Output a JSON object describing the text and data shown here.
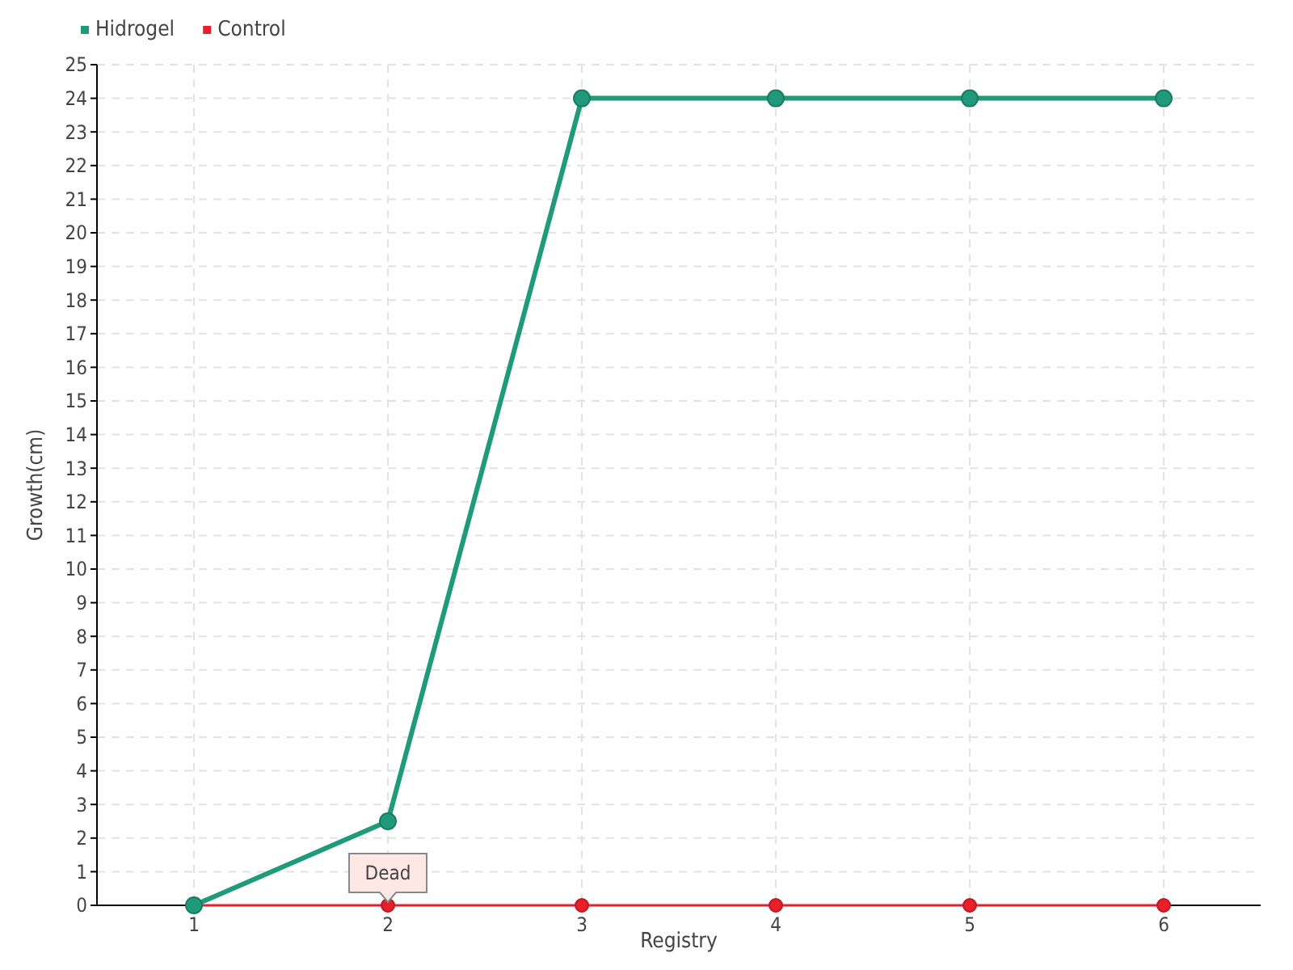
{
  "chart_data": {
    "type": "line",
    "xlabel": "Registry",
    "ylabel": "Growth(cm)",
    "categories": [
      "1",
      "2",
      "3",
      "4",
      "5",
      "6"
    ],
    "series": [
      {
        "name": "Hidrogel",
        "color": "#1f9a7b",
        "values": [
          0,
          2.5,
          24,
          24,
          24,
          24
        ]
      },
      {
        "name": "Control",
        "color": "#e8202a",
        "values": [
          0,
          0,
          0,
          0,
          0,
          0
        ]
      }
    ],
    "ylim": [
      0,
      25
    ],
    "yticks": [
      0,
      1,
      2,
      3,
      4,
      5,
      6,
      7,
      8,
      9,
      10,
      11,
      12,
      13,
      14,
      15,
      16,
      17,
      18,
      19,
      20,
      21,
      22,
      23,
      24,
      25
    ],
    "grid": true,
    "legend": "top left",
    "marker": "circle",
    "line_style": "solid",
    "annotations": [
      {
        "text": "Dead",
        "x": "2",
        "y": 0
      }
    ]
  }
}
